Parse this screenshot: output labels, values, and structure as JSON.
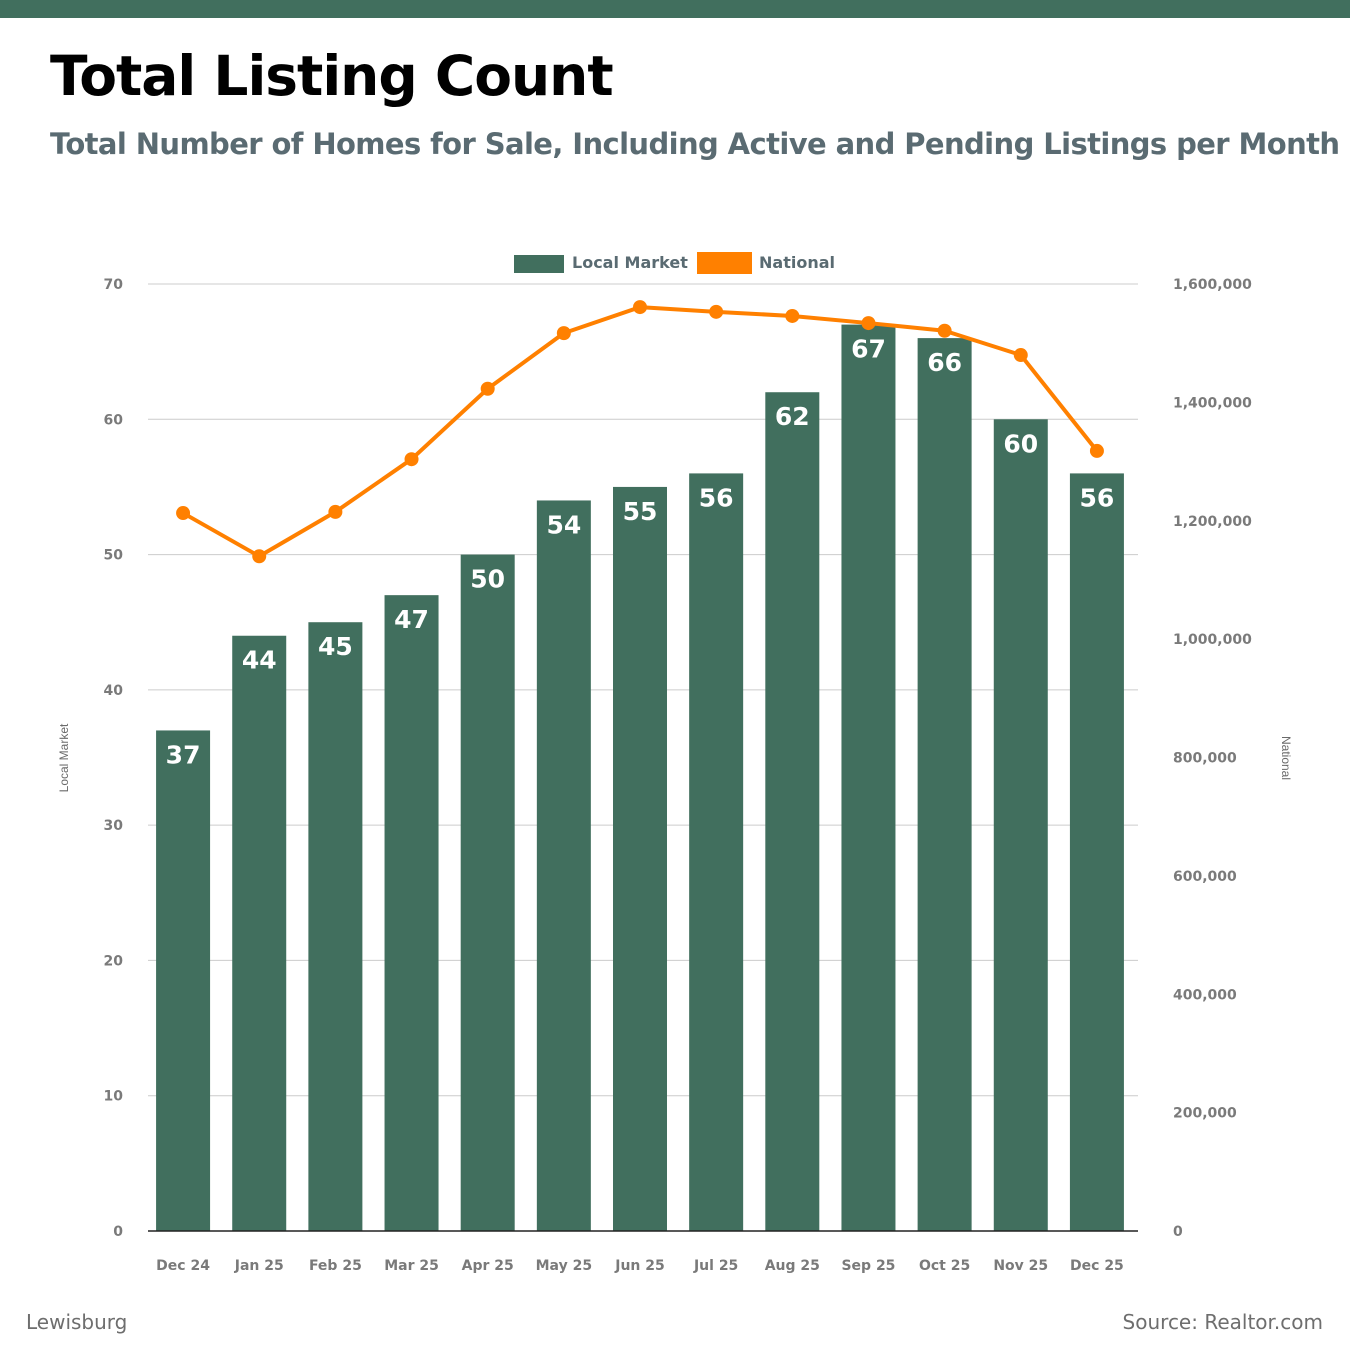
{
  "header": {
    "title": "Total Listing Count",
    "subtitle": "Total Number of Homes for Sale, Including Active and Pending Listings per Month"
  },
  "footer": {
    "location": "Lewisburg",
    "source": "Source: Realtor.com"
  },
  "colors": {
    "brand": "#416f5e",
    "local_bar": "#416f5e",
    "national_line": "#ff8000",
    "grid": "#cccccc",
    "tick_text": "#7a7a7a"
  },
  "chart_data": {
    "type": "bar",
    "title": "Total Listing Count",
    "subtitle": "Total Number of Homes for Sale, Including Active and Pending Listings per Month",
    "categories": [
      "Dec 24",
      "Jan 25",
      "Feb 25",
      "Mar 25",
      "Apr 25",
      "May 25",
      "Jun 25",
      "Jul 25",
      "Aug 25",
      "Sep 25",
      "Oct 25",
      "Nov 25",
      "Dec 25"
    ],
    "series": [
      {
        "name": "Local Market",
        "type": "bar",
        "axis": "left",
        "values": [
          37,
          44,
          45,
          47,
          50,
          54,
          55,
          56,
          62,
          67,
          66,
          60,
          56
        ],
        "data_labels": [
          "37",
          "44",
          "45",
          "47",
          "50",
          "54",
          "55",
          "56",
          "62",
          "67",
          "66",
          "60",
          "56"
        ]
      },
      {
        "name": "National",
        "type": "line",
        "axis": "right",
        "values": [
          1213000,
          1140000,
          1215000,
          1304000,
          1423000,
          1517000,
          1561000,
          1553000,
          1546000,
          1534000,
          1521000,
          1480000,
          1318000
        ]
      }
    ],
    "left_axis": {
      "label": "Local Market",
      "ylim": [
        0,
        70
      ],
      "ticks": [
        0,
        10,
        20,
        30,
        40,
        50,
        60,
        70
      ],
      "tick_labels": [
        "0",
        "10",
        "20",
        "30",
        "40",
        "50",
        "60",
        "70"
      ]
    },
    "right_axis": {
      "label": "National",
      "ylim": [
        0,
        1600000
      ],
      "ticks": [
        0,
        200000,
        400000,
        600000,
        800000,
        1000000,
        1200000,
        1400000,
        1600000
      ],
      "tick_labels": [
        "0",
        "200,000",
        "400,000",
        "600,000",
        "800,000",
        "1,000,000",
        "1,200,000",
        "1,400,000",
        "1,600,000"
      ]
    },
    "legend": {
      "position": "top-center",
      "entries": [
        "Local Market",
        "National"
      ]
    },
    "grid": true
  }
}
